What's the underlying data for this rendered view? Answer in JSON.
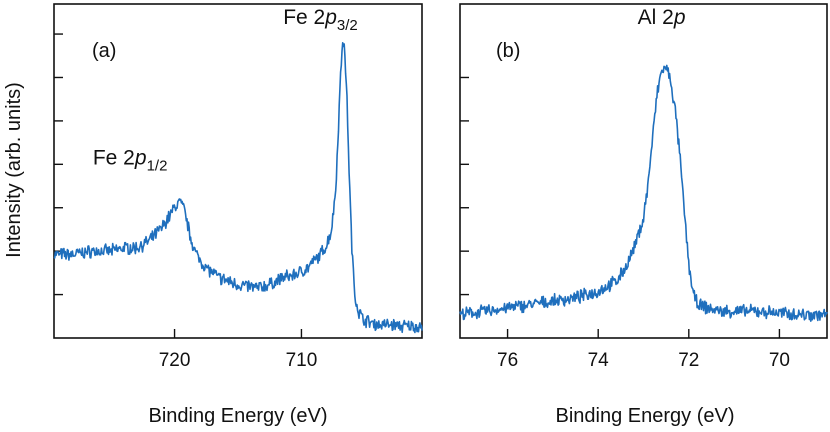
{
  "chart_data": [
    {
      "type": "line",
      "panel_label": "(a)",
      "xlabel": "Binding Energy (eV)",
      "ylabel": "Intensity (arb. units)",
      "x_reversed": true,
      "xlim": [
        729.5,
        700.5
      ],
      "ylim": [
        0,
        1
      ],
      "x_ticks": [
        720,
        710
      ],
      "y_ticks": [
        0.13,
        0.26,
        0.39,
        0.52,
        0.65,
        0.78,
        0.91
      ],
      "y_tick_labels_shown": false,
      "color": "#1f6fbd",
      "annotations": [
        {
          "main": "Fe 2",
          "italic": "p",
          "sub": "1/2",
          "x": 723.5,
          "y": 0.52
        },
        {
          "main": "Fe 2",
          "italic": "p",
          "sub": "3/2",
          "x": 708.5,
          "y": 0.94
        }
      ],
      "series": [
        {
          "name": "Fe 2p",
          "x": [
            729.5,
            728,
            726.5,
            725,
            724,
            723,
            722.5,
            722,
            721.5,
            721,
            720.5,
            720,
            719.6,
            719.2,
            718.8,
            718.3,
            717.5,
            716.5,
            715,
            713.5,
            712.5,
            711.5,
            710.5,
            709.5,
            709,
            708.5,
            708,
            707.6,
            707.3,
            707.1,
            706.9,
            706.75,
            706.6,
            706.4,
            706.2,
            706,
            705.8,
            705.5,
            705.2,
            704.8,
            704,
            703,
            702,
            701,
            700.5
          ],
          "y": [
            0.25,
            0.25,
            0.26,
            0.26,
            0.27,
            0.27,
            0.28,
            0.29,
            0.31,
            0.33,
            0.36,
            0.39,
            0.41,
            0.38,
            0.31,
            0.25,
            0.21,
            0.18,
            0.16,
            0.15,
            0.16,
            0.18,
            0.19,
            0.21,
            0.23,
            0.25,
            0.28,
            0.33,
            0.45,
            0.62,
            0.8,
            0.9,
            0.86,
            0.7,
            0.45,
            0.25,
            0.13,
            0.08,
            0.06,
            0.05,
            0.04,
            0.04,
            0.035,
            0.035,
            0.035
          ]
        }
      ]
    },
    {
      "type": "line",
      "panel_label": "(b)",
      "xlabel": "Binding Energy (eV)",
      "ylabel": "",
      "x_reversed": true,
      "xlim": [
        77.05,
        68.95
      ],
      "ylim": [
        0,
        1
      ],
      "x_ticks": [
        76,
        74,
        72,
        70
      ],
      "y_ticks": [
        0.13,
        0.26,
        0.39,
        0.52,
        0.65,
        0.78
      ],
      "y_tick_labels_shown": false,
      "color": "#1f6fbd",
      "annotations": [
        {
          "main": "Al 2",
          "italic": "p",
          "sub": "",
          "x": 72.6,
          "y": 0.94
        }
      ],
      "series": [
        {
          "name": "Al 2p",
          "x": [
            77.05,
            76.5,
            76,
            75.5,
            75,
            74.5,
            74,
            73.6,
            73.4,
            73.2,
            73,
            72.9,
            72.8,
            72.7,
            72.6,
            72.5,
            72.4,
            72.3,
            72.2,
            72.1,
            72,
            71.9,
            71.8,
            71.6,
            71.3,
            71,
            70.5,
            70,
            69.5,
            69,
            68.95
          ],
          "y": [
            0.07,
            0.08,
            0.09,
            0.1,
            0.11,
            0.12,
            0.14,
            0.17,
            0.21,
            0.27,
            0.36,
            0.46,
            0.6,
            0.73,
            0.8,
            0.81,
            0.77,
            0.68,
            0.55,
            0.38,
            0.22,
            0.13,
            0.1,
            0.09,
            0.08,
            0.08,
            0.08,
            0.075,
            0.07,
            0.07,
            0.07
          ]
        }
      ]
    }
  ]
}
